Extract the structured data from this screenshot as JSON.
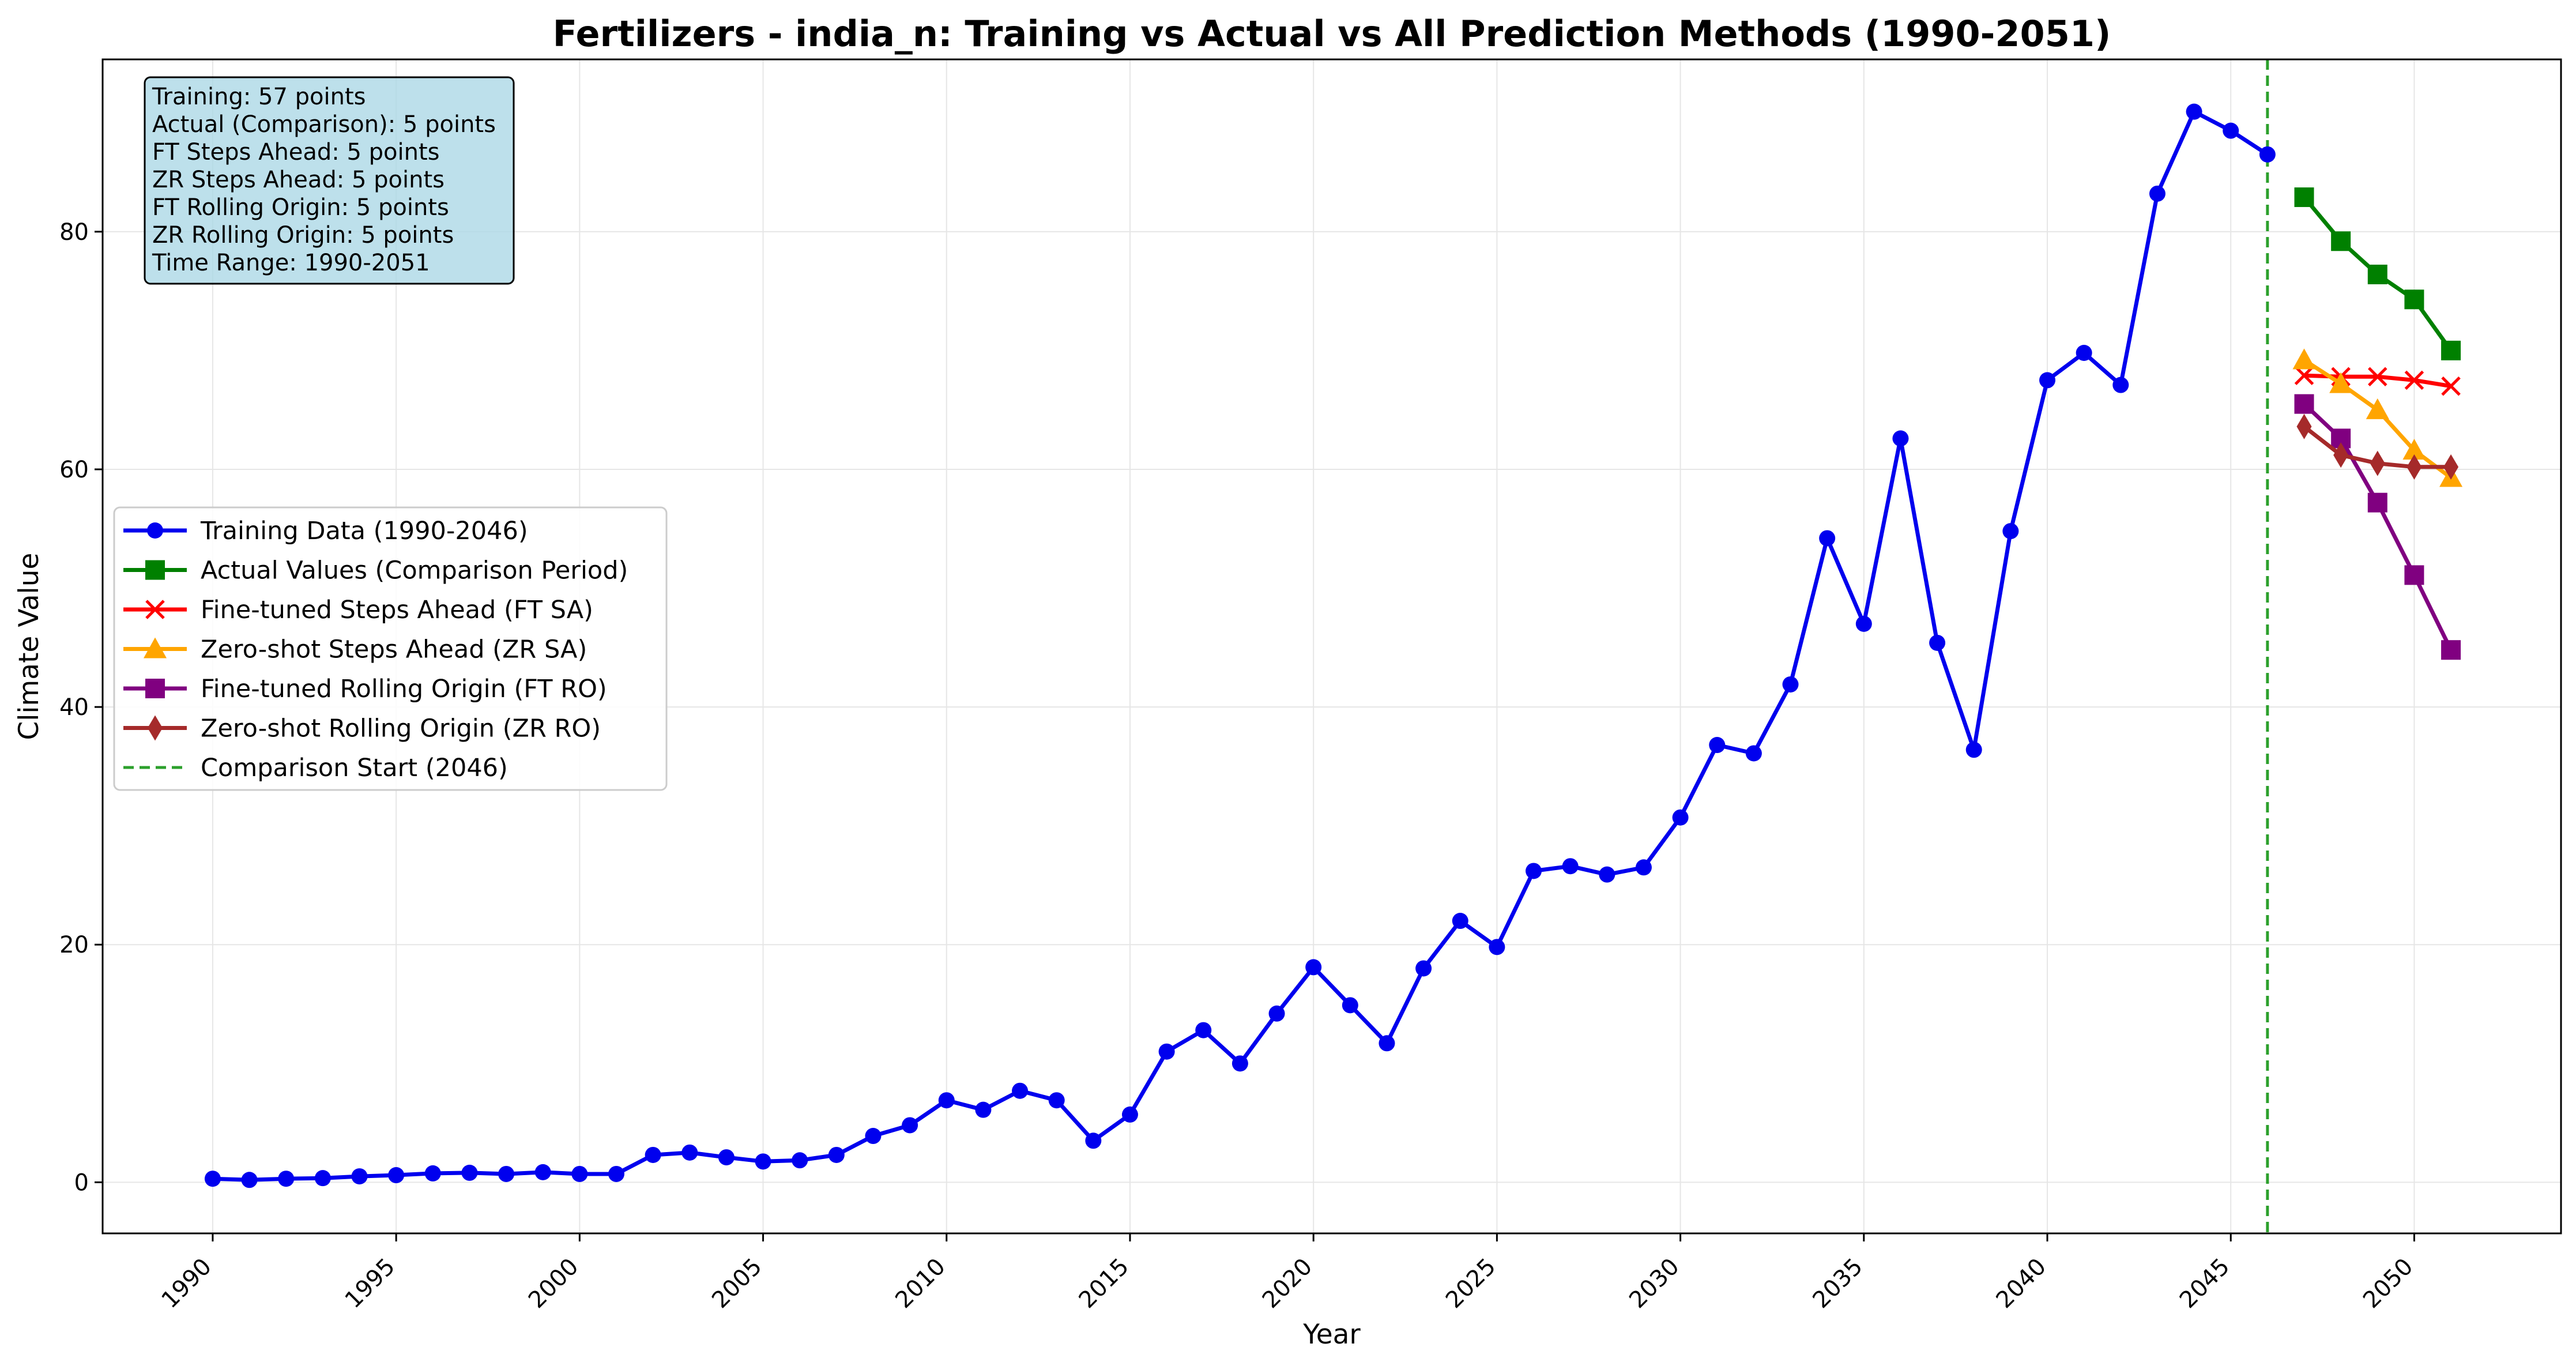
{
  "chart_data": {
    "type": "line",
    "title": "Fertilizers - india_n: Training vs Actual vs All Prediction Methods (1990-2051)",
    "xlabel": "Year",
    "ylabel": "Climate Value",
    "xlim": [
      1987,
      2054
    ],
    "ylim": [
      -4.3,
      94.5
    ],
    "x_ticks": [
      1990,
      1995,
      2000,
      2005,
      2010,
      2015,
      2020,
      2025,
      2030,
      2035,
      2040,
      2045,
      2050
    ],
    "y_ticks": [
      0,
      20,
      40,
      60,
      80
    ],
    "grid": true,
    "legend_position": "center-left",
    "comparison_start": {
      "x": 2046,
      "label": "Comparison Start (2046)",
      "color": "#2ca02c"
    },
    "info_box": [
      "Training: 57 points",
      "Actual (Comparison): 5 points",
      "FT Steps Ahead: 5 points",
      "ZR Steps Ahead: 5 points",
      "FT Rolling Origin: 5 points",
      "ZR Rolling Origin: 5 points",
      "Time Range: 1990-2051"
    ],
    "series": [
      {
        "name": "Training Data (1990-2046)",
        "color": "#0000ee",
        "marker": "circle",
        "x": [
          1990,
          1991,
          1992,
          1993,
          1994,
          1995,
          1996,
          1997,
          1998,
          1999,
          2000,
          2001,
          2002,
          2003,
          2004,
          2005,
          2006,
          2007,
          2008,
          2009,
          2010,
          2011,
          2012,
          2013,
          2014,
          2015,
          2016,
          2017,
          2018,
          2019,
          2020,
          2021,
          2022,
          2023,
          2024,
          2025,
          2026,
          2027,
          2028,
          2029,
          2030,
          2031,
          2032,
          2033,
          2034,
          2035,
          2036,
          2037,
          2038,
          2039,
          2040,
          2041,
          2042,
          2043,
          2044,
          2045,
          2046
        ],
        "values": [
          0.3,
          0.2,
          0.3,
          0.35,
          0.5,
          0.6,
          0.75,
          0.8,
          0.7,
          0.85,
          0.7,
          0.7,
          2.3,
          2.5,
          2.1,
          1.75,
          1.85,
          2.3,
          3.9,
          4.8,
          6.9,
          6.1,
          7.7,
          6.9,
          3.5,
          5.7,
          11.0,
          12.8,
          10.0,
          14.2,
          18.1,
          14.9,
          11.7,
          18.0,
          22.0,
          19.8,
          26.2,
          26.6,
          25.9,
          26.5,
          30.7,
          36.8,
          36.1,
          41.9,
          54.2,
          47.0,
          62.6,
          45.4,
          36.4,
          54.8,
          67.5,
          69.8,
          67.1,
          83.2,
          90.1,
          88.5,
          86.5
        ]
      },
      {
        "name": "Actual Values (Comparison Period)",
        "color": "#008000",
        "marker": "square",
        "x": [
          2047,
          2048,
          2049,
          2050,
          2051
        ],
        "values": [
          82.9,
          79.2,
          76.4,
          74.3,
          70.0
        ]
      },
      {
        "name": "Fine-tuned Steps Ahead (FT SA)",
        "color": "#ff0000",
        "marker": "x",
        "x": [
          2047,
          2048,
          2049,
          2050,
          2051
        ],
        "values": [
          67.9,
          67.8,
          67.8,
          67.5,
          67.0
        ]
      },
      {
        "name": "Zero-shot Steps Ahead (ZR SA)",
        "color": "#ffa500",
        "marker": "triangle",
        "x": [
          2047,
          2048,
          2049,
          2050,
          2051
        ],
        "values": [
          69.2,
          67.2,
          65.0,
          61.6,
          59.3
        ]
      },
      {
        "name": "Fine-tuned Rolling Origin (FT RO)",
        "color": "#800080",
        "marker": "square",
        "x": [
          2047,
          2048,
          2049,
          2050,
          2051
        ],
        "values": [
          65.5,
          62.6,
          57.2,
          51.1,
          44.8
        ]
      },
      {
        "name": "Zero-shot Rolling Origin (ZR RO)",
        "color": "#a52a2a",
        "marker": "diamond",
        "x": [
          2047,
          2048,
          2049,
          2050,
          2051
        ],
        "values": [
          63.6,
          61.2,
          60.5,
          60.2,
          60.2
        ]
      }
    ]
  }
}
